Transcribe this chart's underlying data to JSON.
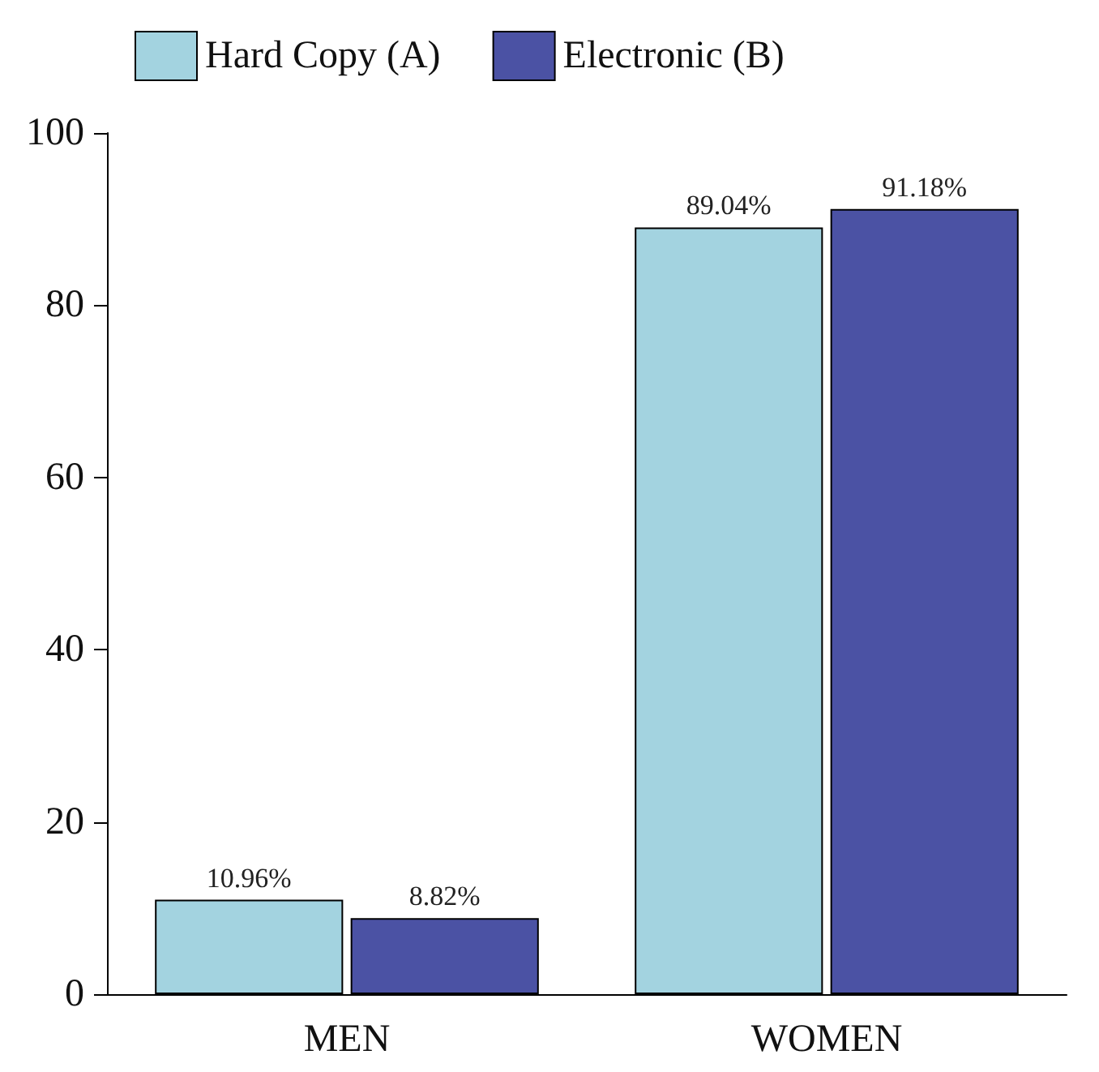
{
  "chart_data": {
    "type": "bar",
    "categories": [
      "MEN",
      "WOMEN"
    ],
    "series": [
      {
        "name": "Hard Copy (A)",
        "color": "#a3d3e0",
        "values": [
          10.96,
          89.04
        ],
        "value_labels": [
          "10.96%",
          "89.04%"
        ]
      },
      {
        "name": "Electronic (B)",
        "color": "#4b52a4",
        "values": [
          8.82,
          91.18
        ],
        "value_labels": [
          "8.82%",
          "91.18%"
        ]
      }
    ],
    "ylim": [
      0,
      100
    ],
    "yticks": [
      0,
      20,
      40,
      60,
      80,
      100
    ],
    "grid": false,
    "legend": "top left"
  }
}
